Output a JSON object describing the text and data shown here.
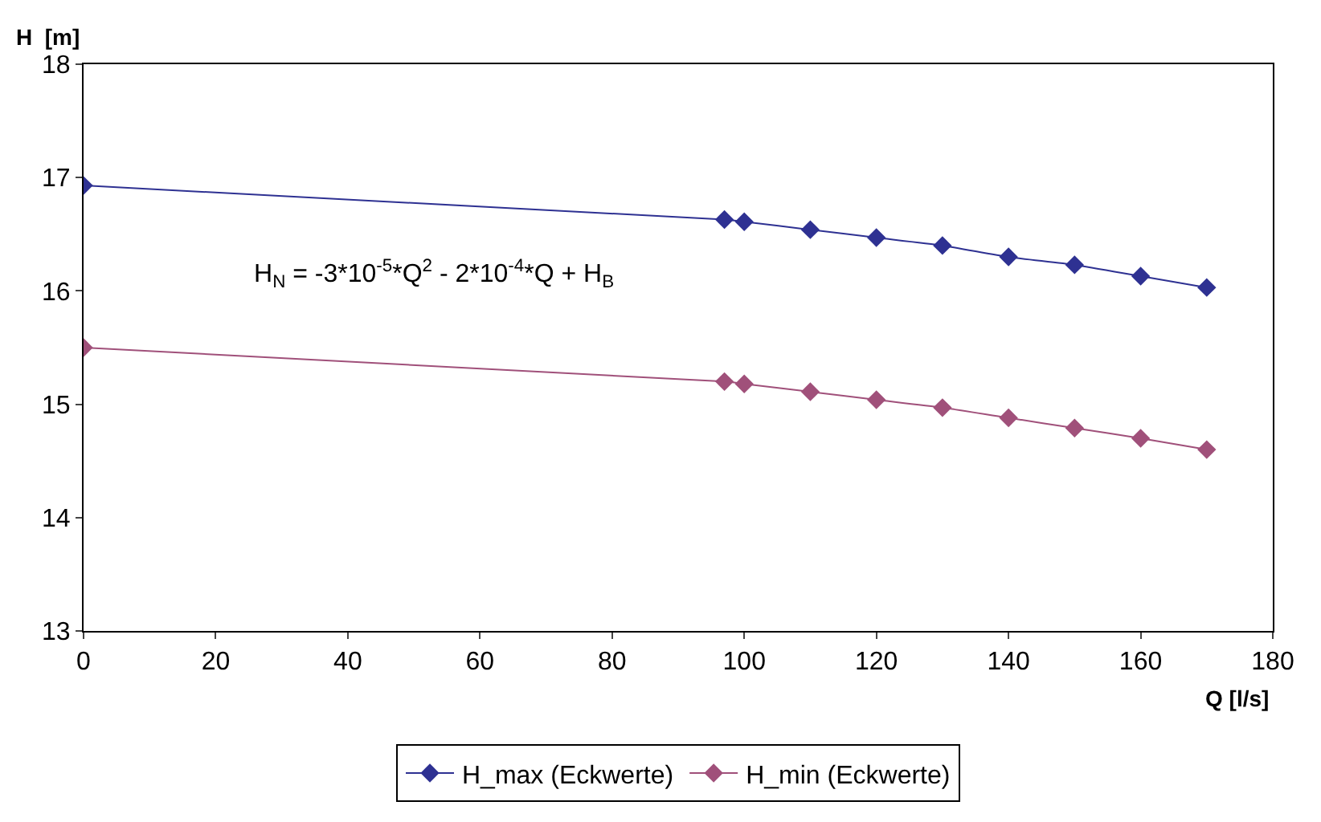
{
  "chart_data": {
    "type": "line",
    "xlabel": "Q [l/s]",
    "ylabel": "H  [m]",
    "x": [
      0,
      97,
      100,
      110,
      120,
      130,
      140,
      150,
      160,
      170
    ],
    "series": [
      {
        "name": "H_max (Eckwerte)",
        "color": "#2e3192",
        "values": [
          16.93,
          16.63,
          16.61,
          16.54,
          16.47,
          16.4,
          16.3,
          16.23,
          16.13,
          16.03
        ]
      },
      {
        "name": "H_min (Eckwerte)",
        "color": "#a0507a",
        "values": [
          15.5,
          15.2,
          15.18,
          15.11,
          15.04,
          14.97,
          14.88,
          14.79,
          14.7,
          14.6
        ]
      }
    ],
    "xlim": [
      0,
      180
    ],
    "xticks": [
      0,
      20,
      40,
      60,
      80,
      100,
      120,
      140,
      160,
      180
    ],
    "ylim": [
      13,
      18
    ],
    "yticks": [
      13,
      14,
      15,
      16,
      17,
      18
    ],
    "annotations": [
      "H$_{N}$ = -3*10$^{-5}$*Q$^{2}$ - 2*10$^{-4}$*Q + H$_{B}$"
    ],
    "legend": "bottom",
    "marker": "diamond",
    "line_style": "solid"
  }
}
